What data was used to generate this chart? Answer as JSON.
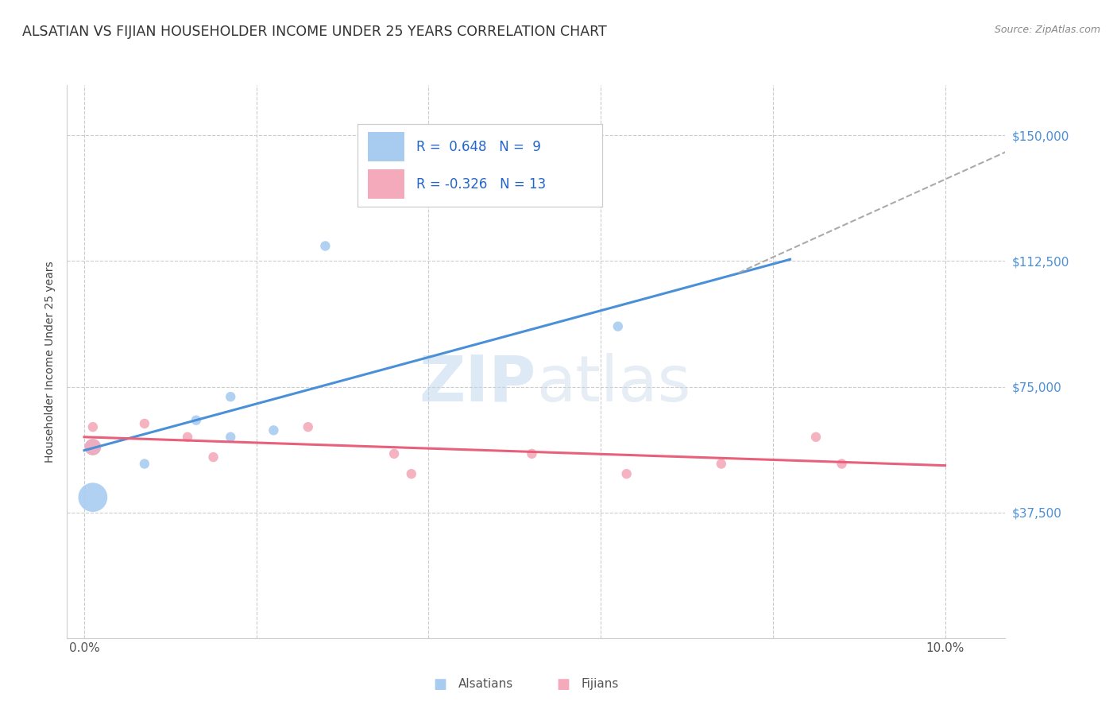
{
  "title": "ALSATIAN VS FIJIAN HOUSEHOLDER INCOME UNDER 25 YEARS CORRELATION CHART",
  "source": "Source: ZipAtlas.com",
  "ylabel": "Householder Income Under 25 years",
  "watermark_zip": "ZIP",
  "watermark_atlas": "atlas",
  "alsatian_color": "#A8CCF0",
  "fijian_color": "#F4AABB",
  "alsatian_line_color": "#4A90D9",
  "fijian_line_color": "#E8607A",
  "alsatian_x": [
    0.001,
    0.007,
    0.013,
    0.017,
    0.017,
    0.022,
    0.028,
    0.062,
    0.001
  ],
  "alsatian_y": [
    57000,
    52000,
    65000,
    60000,
    72000,
    62000,
    117000,
    93000,
    42000
  ],
  "alsatian_size": [
    220,
    80,
    80,
    80,
    80,
    80,
    80,
    80,
    700
  ],
  "fijian_x": [
    0.001,
    0.007,
    0.012,
    0.015,
    0.026,
    0.036,
    0.038,
    0.052,
    0.063,
    0.074,
    0.085,
    0.088,
    0.001
  ],
  "fijian_y": [
    63000,
    64000,
    60000,
    54000,
    63000,
    55000,
    49000,
    55000,
    49000,
    52000,
    60000,
    52000,
    57000
  ],
  "fijian_size": [
    80,
    80,
    80,
    80,
    80,
    80,
    80,
    80,
    80,
    80,
    80,
    80,
    220
  ],
  "xlim": [
    -0.002,
    0.107
  ],
  "ylim": [
    0,
    165000
  ],
  "yticks": [
    0,
    37500,
    75000,
    112500,
    150000
  ],
  "ytick_labels": [
    "",
    "$37,500",
    "$75,000",
    "$112,500",
    "$150,000"
  ],
  "xtick_vals": [
    0.0,
    0.02,
    0.04,
    0.06,
    0.08,
    0.1
  ],
  "grid_color": "#CCCCCC",
  "background_color": "#FFFFFF",
  "blue_line_x0": 0.0,
  "blue_line_y0": 56000,
  "blue_line_x1": 0.082,
  "blue_line_y1": 113000,
  "pink_line_x0": 0.0,
  "pink_line_y0": 60000,
  "pink_line_x1": 0.1,
  "pink_line_y1": 51500,
  "dash_line_x0": 0.076,
  "dash_line_y0": 109000,
  "dash_line_x1": 0.107,
  "dash_line_y1": 145000
}
